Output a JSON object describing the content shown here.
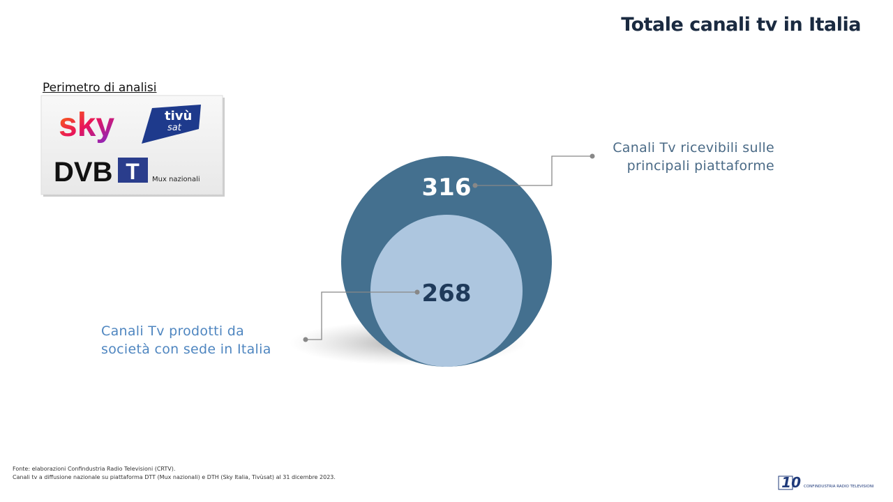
{
  "title": "Totale canali tv in Italia",
  "perimeter": {
    "label": "Perimetro di analisi",
    "logos": {
      "sky": "sky",
      "tivu": "tivù",
      "sat": "sat",
      "dvb": "DVB",
      "t": "T",
      "mux": "Mux nazionali"
    }
  },
  "circles": [
    {
      "value": 316,
      "label": "Canali Tv ricevibili sulle principali piattaforme"
    },
    {
      "value": 268,
      "label": "Canali Tv prodotti da società con sede in Italia"
    }
  ],
  "footer": {
    "source": "Fonte: elaborazioni Confindustria Radio Televisioni (CRTV).",
    "note": "Canali tv a diffusione nazionale su piattaforma DTT (Mux nazionali) e DTH (Sky Italia, Tivùsat) al 31 dicembre 2023."
  },
  "logo": {
    "number": "10",
    "text": "CONFINDUSTRIA RADIO TELEVISIONI"
  }
}
